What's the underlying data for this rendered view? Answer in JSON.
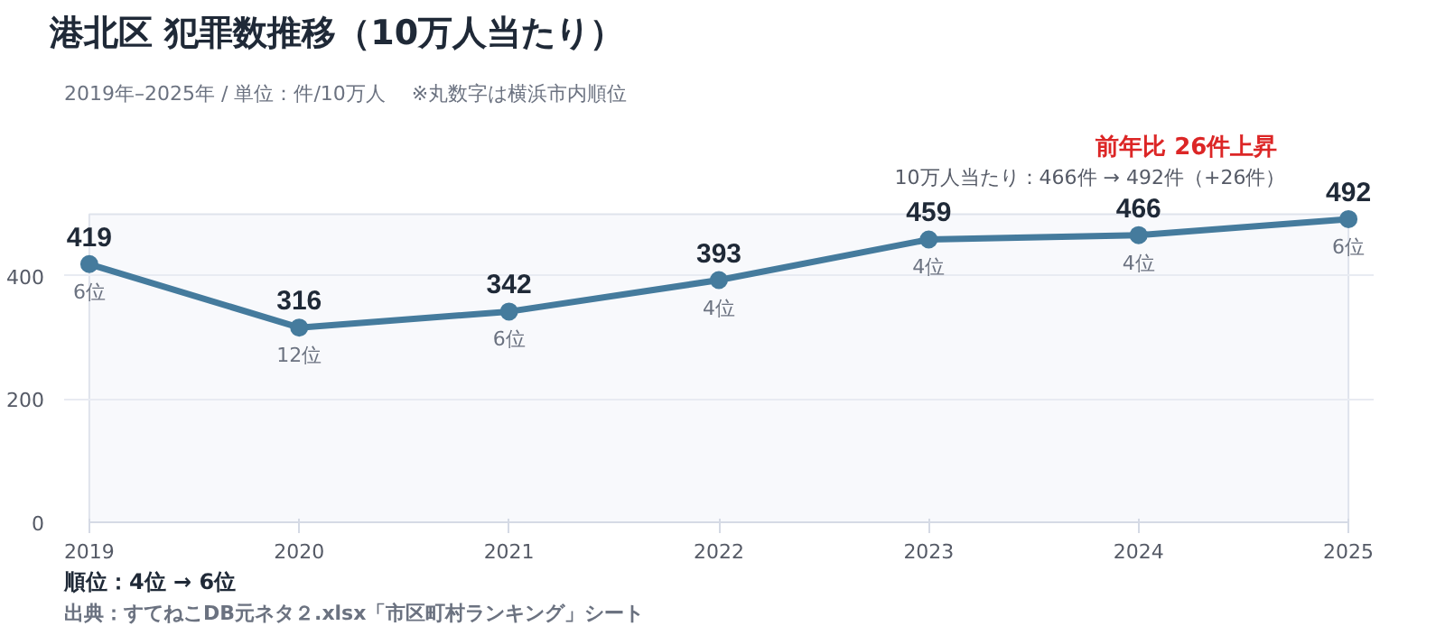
{
  "chart_data": {
    "type": "line",
    "title": "港北区  犯罪数推移（10万人当たり）",
    "subtitle": "2019年–2025年 / 単位：件/10万人　 ※丸数字は横浜市内順位",
    "categories": [
      "2019",
      "2020",
      "2021",
      "2022",
      "2023",
      "2024",
      "2025"
    ],
    "series": [
      {
        "color": "#457b9d",
        "values": [
          419,
          316,
          342,
          393,
          459,
          466,
          492
        ]
      }
    ],
    "ylim": [
      0,
      500
    ],
    "yticks": [
      0,
      200,
      400
    ],
    "grid": "y",
    "marker": "circle",
    "line_style": "solid",
    "data_labels": true,
    "annotations": [
      "前年比  26件上昇",
      "10万人当たり：466件 → 492件（+26件）",
      "順位：4位 → 6位",
      "出典：すてねこDB元ネタ２.xlsx「市区町村ランキング」シート",
      {
        "text": "6位",
        "x": "2019",
        "y": 419
      },
      {
        "text": "12位",
        "x": "2020",
        "y": 316
      },
      {
        "text": "6位",
        "x": "2021",
        "y": 342
      },
      {
        "text": "4位",
        "x": "2022",
        "y": 393
      },
      {
        "text": "4位",
        "x": "2023",
        "y": 459
      },
      {
        "text": "4位",
        "x": "2024",
        "y": 466
      },
      {
        "text": "6位",
        "x": "2025",
        "y": 492
      }
    ]
  }
}
